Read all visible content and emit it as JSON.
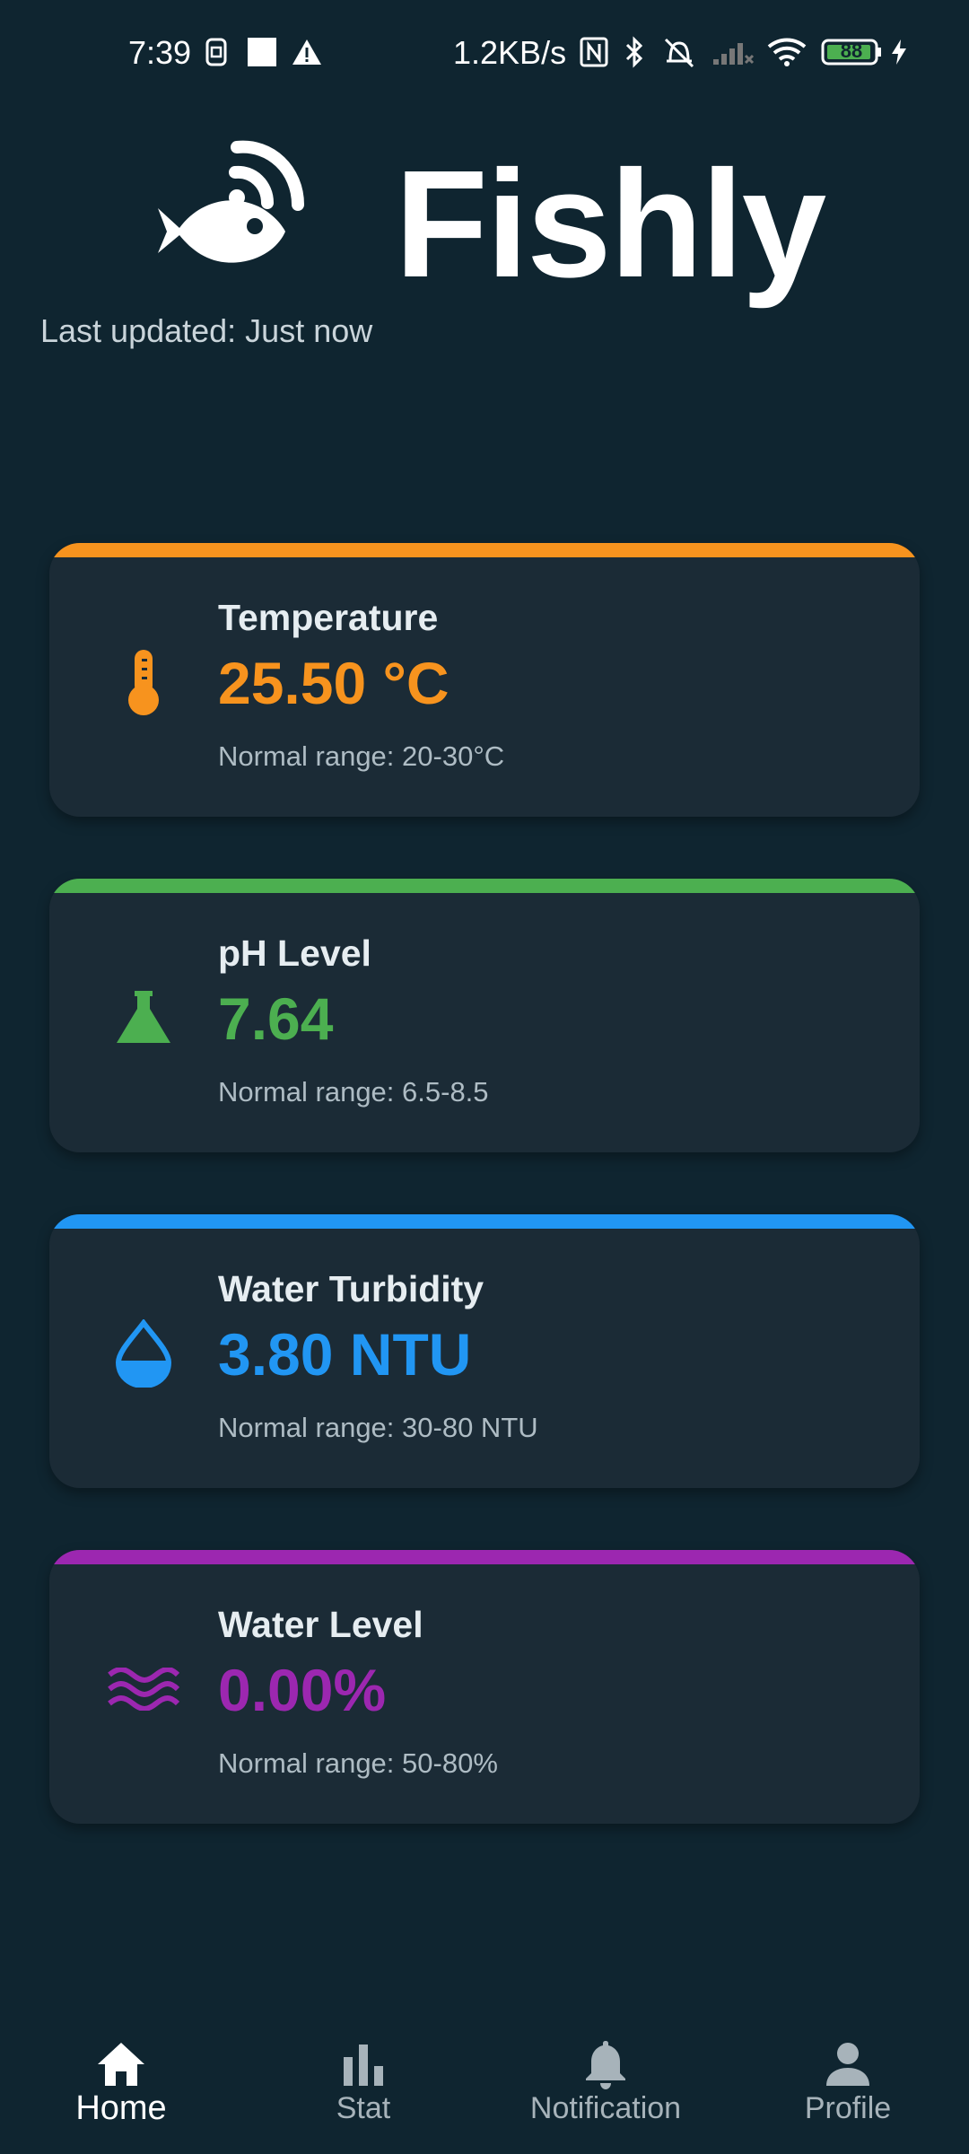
{
  "status_bar": {
    "time": "7:39",
    "network_speed": "1.2KB/s",
    "battery": "88",
    "icons": [
      "sim-icon",
      "square-icon",
      "warning-icon",
      "nfc-icon",
      "bluetooth-icon",
      "alarm-off-icon",
      "signal-icon",
      "wifi-icon",
      "battery-icon",
      "charging-icon"
    ]
  },
  "header": {
    "app_title": "Fishly",
    "last_updated": "Last updated: Just now",
    "logo_icon": "fish-wifi-icon"
  },
  "cards": [
    {
      "title": "Temperature",
      "value": "25.50 °C",
      "range": "Normal range: 20-30°C",
      "color": "#f7931e",
      "icon": "thermometer-icon"
    },
    {
      "title": "pH Level",
      "value": "7.64",
      "range": "Normal range: 6.5-8.5",
      "color": "#4caf50",
      "icon": "flask-icon"
    },
    {
      "title": "Water Turbidity",
      "value": "3.80 NTU",
      "range": "Normal range: 30-80 NTU",
      "color": "#2196f3",
      "icon": "water-drop-icon"
    },
    {
      "title": "Water Level",
      "value": "0.00%",
      "range": "Normal range: 50-80%",
      "color": "#9c27b0",
      "icon": "waves-icon"
    }
  ],
  "bottom_nav": {
    "items": [
      {
        "label": "Home",
        "icon": "home-icon",
        "active": true
      },
      {
        "label": "Stat",
        "icon": "bar-chart-icon",
        "active": false
      },
      {
        "label": "Notification",
        "icon": "bell-icon",
        "active": false
      },
      {
        "label": "Profile",
        "icon": "person-icon",
        "active": false
      }
    ]
  },
  "colors": {
    "background": "#0f2530",
    "card": "#1b2b36"
  }
}
